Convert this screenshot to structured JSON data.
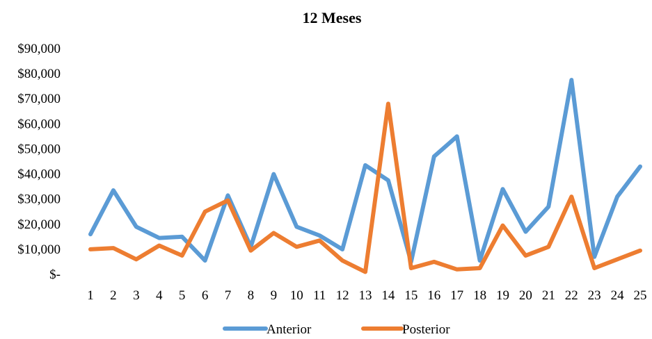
{
  "chart_data": {
    "type": "line",
    "title": "12 Meses",
    "xlabel": "",
    "ylabel": "",
    "categories": [
      "1",
      "2",
      "3",
      "4",
      "5",
      "6",
      "7",
      "8",
      "9",
      "10",
      "11",
      "12",
      "13",
      "14",
      "15",
      "16",
      "17",
      "18",
      "19",
      "20",
      "21",
      "22",
      "23",
      "24",
      "25"
    ],
    "ylim": [
      0,
      90000
    ],
    "y_ticks": [
      0,
      10000,
      20000,
      30000,
      40000,
      50000,
      60000,
      70000,
      80000,
      90000
    ],
    "y_tick_labels": [
      "$-",
      "$10,000",
      "$20,000",
      "$30,000",
      "$40,000",
      "$50,000",
      "$60,000",
      "$70,000",
      "$80,000",
      "$90,000"
    ],
    "grid": false,
    "legend_position": "bottom",
    "series": [
      {
        "name": "Anterior",
        "color": "#5B9BD5",
        "values": [
          16000,
          33500,
          19000,
          14500,
          15000,
          5500,
          31500,
          11000,
          40000,
          19000,
          15500,
          10000,
          43500,
          37500,
          5000,
          47000,
          55000,
          5500,
          34000,
          17000,
          27000,
          77500,
          7000,
          31000,
          43000
        ]
      },
      {
        "name": "Posterior",
        "color": "#ED7D31",
        "values": [
          10000,
          10500,
          6000,
          11500,
          7500,
          25000,
          29500,
          9500,
          16500,
          11000,
          13500,
          5500,
          1000,
          68000,
          2500,
          5000,
          2000,
          2500,
          19500,
          7500,
          11000,
          31000,
          2500,
          6000,
          9500
        ]
      }
    ]
  }
}
